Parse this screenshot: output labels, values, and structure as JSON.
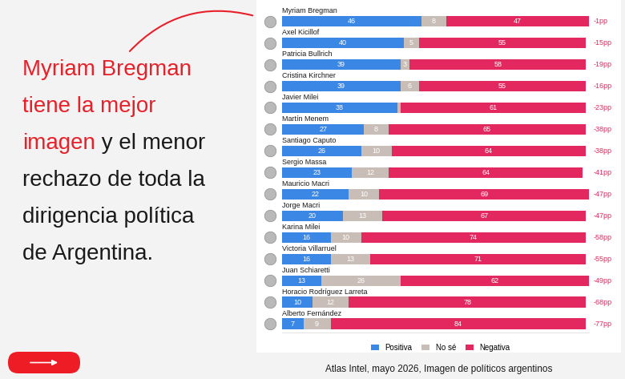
{
  "chart_data": {
    "type": "bar",
    "orientation": "horizontal",
    "stacked": true,
    "data_labels": true,
    "tick_labels": false,
    "legend": "bottom",
    "xlim": [
      0,
      101
    ],
    "headline_lines": [
      [
        {
          "text": "Myriam Bregman",
          "highlight": true
        }
      ],
      [
        {
          "text": "tiene la mejor",
          "highlight": true
        }
      ],
      [
        {
          "text": "imagen",
          "highlight": true
        },
        {
          "text": " y el menor",
          "highlight": false
        }
      ],
      [
        {
          "text": "rechazo de toda la",
          "highlight": false
        }
      ],
      [
        {
          "text": "dirigencia política",
          "highlight": false
        }
      ],
      [
        {
          "text": "de Argentina.",
          "highlight": false
        }
      ]
    ],
    "source": "Atlas Intel, mayo 2026, Imagen de políticos argentinos",
    "categories": [
      "Myriam Bregman",
      "Axel Kicillof",
      "Patricia Bullrich",
      "Cristina Kirchner",
      "Javier Milei",
      "Martín Menem",
      "Santiago Caputo",
      "Sergio Massa",
      "Mauricio Macri",
      "Jorge Macri",
      "Karina Milei",
      "Victoria Villarruel",
      "Juan Schiaretti",
      "Horacio Rodríguez Larreta",
      "Alberto Fernández"
    ],
    "series": [
      {
        "name": "Positiva",
        "color": "#3b87e6",
        "values": [
          46,
          40,
          39,
          39,
          38,
          27,
          26,
          23,
          22,
          20,
          16,
          16,
          13,
          10,
          7
        ],
        "value_labels": [
          "46",
          "40",
          "39",
          "39",
          "38",
          "27",
          "26",
          "23",
          "22",
          "20",
          "16",
          "16",
          "13",
          "10",
          "7"
        ]
      },
      {
        "name": "No sé",
        "color": "#c8beb7",
        "values": [
          8,
          5,
          3,
          6,
          1,
          8,
          10,
          12,
          10,
          13,
          10,
          13,
          26,
          12,
          9
        ],
        "value_labels": [
          "8",
          "5",
          "3",
          "6",
          null,
          "8",
          "10",
          "12",
          "10",
          "13",
          "10",
          "13",
          "26",
          "12",
          "9"
        ]
      },
      {
        "name": "Negativa",
        "color": "#e2285f",
        "values": [
          47,
          55,
          58,
          55,
          61,
          65,
          64,
          64,
          69,
          67,
          74,
          71,
          62,
          78,
          84
        ],
        "value_labels": [
          "47",
          "55",
          "58",
          "55",
          "61",
          "65",
          "64",
          "64",
          "69",
          "67",
          "74",
          "71",
          "62",
          "78",
          "84"
        ]
      }
    ],
    "net_labels": [
      "-1pp",
      "-15pp",
      "-19pp",
      "-16pp",
      "-23pp",
      "-38pp",
      "-38pp",
      "-41pp",
      "-47pp",
      "-47pp",
      "-58pp",
      "-55pp",
      "-49pp",
      "-68pp",
      "-77pp"
    ]
  }
}
